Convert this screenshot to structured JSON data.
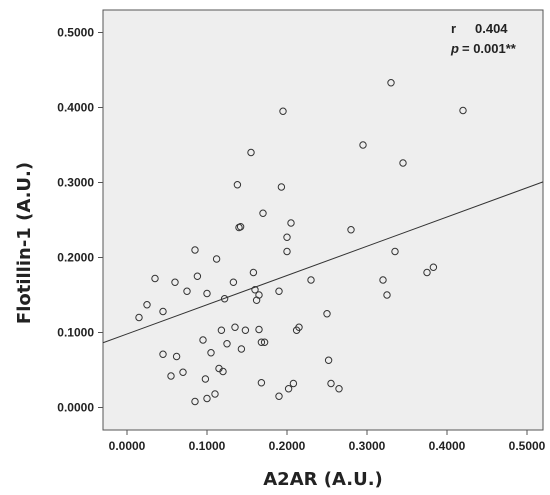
{
  "chart_data": {
    "type": "scatter",
    "xlabel": "A2AR (A.U.)",
    "ylabel": "Flotillin-1  (A.U.)",
    "xlim": [
      -0.03,
      0.52
    ],
    "ylim": [
      -0.03,
      0.53
    ],
    "xticks": [
      "0.0000",
      "0.1000",
      "0.2000",
      "0.3000",
      "0.4000",
      "0.5000"
    ],
    "yticks": [
      "0.0000",
      "0.1000",
      "0.2000",
      "0.3000",
      "0.4000",
      "0.5000"
    ],
    "grid": false,
    "annotation": {
      "r_label": "r",
      "r_value": "0.404",
      "p_label": "p",
      "p_value": "= 0.001**"
    },
    "fit_line": {
      "intercept": 0.098,
      "slope": 0.39
    },
    "series": [
      {
        "points": [
          [
            0.015,
            0.12
          ],
          [
            0.025,
            0.137
          ],
          [
            0.035,
            0.172
          ],
          [
            0.045,
            0.128
          ],
          [
            0.045,
            0.071
          ],
          [
            0.055,
            0.042
          ],
          [
            0.06,
            0.167
          ],
          [
            0.062,
            0.068
          ],
          [
            0.07,
            0.047
          ],
          [
            0.075,
            0.155
          ],
          [
            0.085,
            0.21
          ],
          [
            0.085,
            0.008
          ],
          [
            0.088,
            0.175
          ],
          [
            0.095,
            0.09
          ],
          [
            0.098,
            0.038
          ],
          [
            0.1,
            0.152
          ],
          [
            0.1,
            0.012
          ],
          [
            0.105,
            0.073
          ],
          [
            0.11,
            0.018
          ],
          [
            0.112,
            0.198
          ],
          [
            0.115,
            0.052
          ],
          [
            0.118,
            0.103
          ],
          [
            0.12,
            0.048
          ],
          [
            0.122,
            0.145
          ],
          [
            0.125,
            0.085
          ],
          [
            0.133,
            0.167
          ],
          [
            0.135,
            0.107
          ],
          [
            0.138,
            0.297
          ],
          [
            0.14,
            0.24
          ],
          [
            0.142,
            0.241
          ],
          [
            0.143,
            0.078
          ],
          [
            0.148,
            0.103
          ],
          [
            0.155,
            0.34
          ],
          [
            0.158,
            0.18
          ],
          [
            0.16,
            0.157
          ],
          [
            0.162,
            0.143
          ],
          [
            0.165,
            0.15
          ],
          [
            0.165,
            0.104
          ],
          [
            0.168,
            0.087
          ],
          [
            0.168,
            0.033
          ],
          [
            0.17,
            0.259
          ],
          [
            0.172,
            0.087
          ],
          [
            0.19,
            0.155
          ],
          [
            0.19,
            0.015
          ],
          [
            0.193,
            0.294
          ],
          [
            0.195,
            0.395
          ],
          [
            0.2,
            0.227
          ],
          [
            0.202,
            0.025
          ],
          [
            0.205,
            0.246
          ],
          [
            0.208,
            0.032
          ],
          [
            0.212,
            0.103
          ],
          [
            0.215,
            0.107
          ],
          [
            0.23,
            0.17
          ],
          [
            0.25,
            0.125
          ],
          [
            0.252,
            0.063
          ],
          [
            0.255,
            0.032
          ],
          [
            0.265,
            0.025
          ],
          [
            0.28,
            0.237
          ],
          [
            0.295,
            0.35
          ],
          [
            0.32,
            0.17
          ],
          [
            0.325,
            0.15
          ],
          [
            0.33,
            0.433
          ],
          [
            0.335,
            0.208
          ],
          [
            0.345,
            0.326
          ],
          [
            0.375,
            0.18
          ],
          [
            0.383,
            0.187
          ],
          [
            0.42,
            0.396
          ],
          [
            0.2,
            0.208
          ]
        ]
      }
    ]
  }
}
